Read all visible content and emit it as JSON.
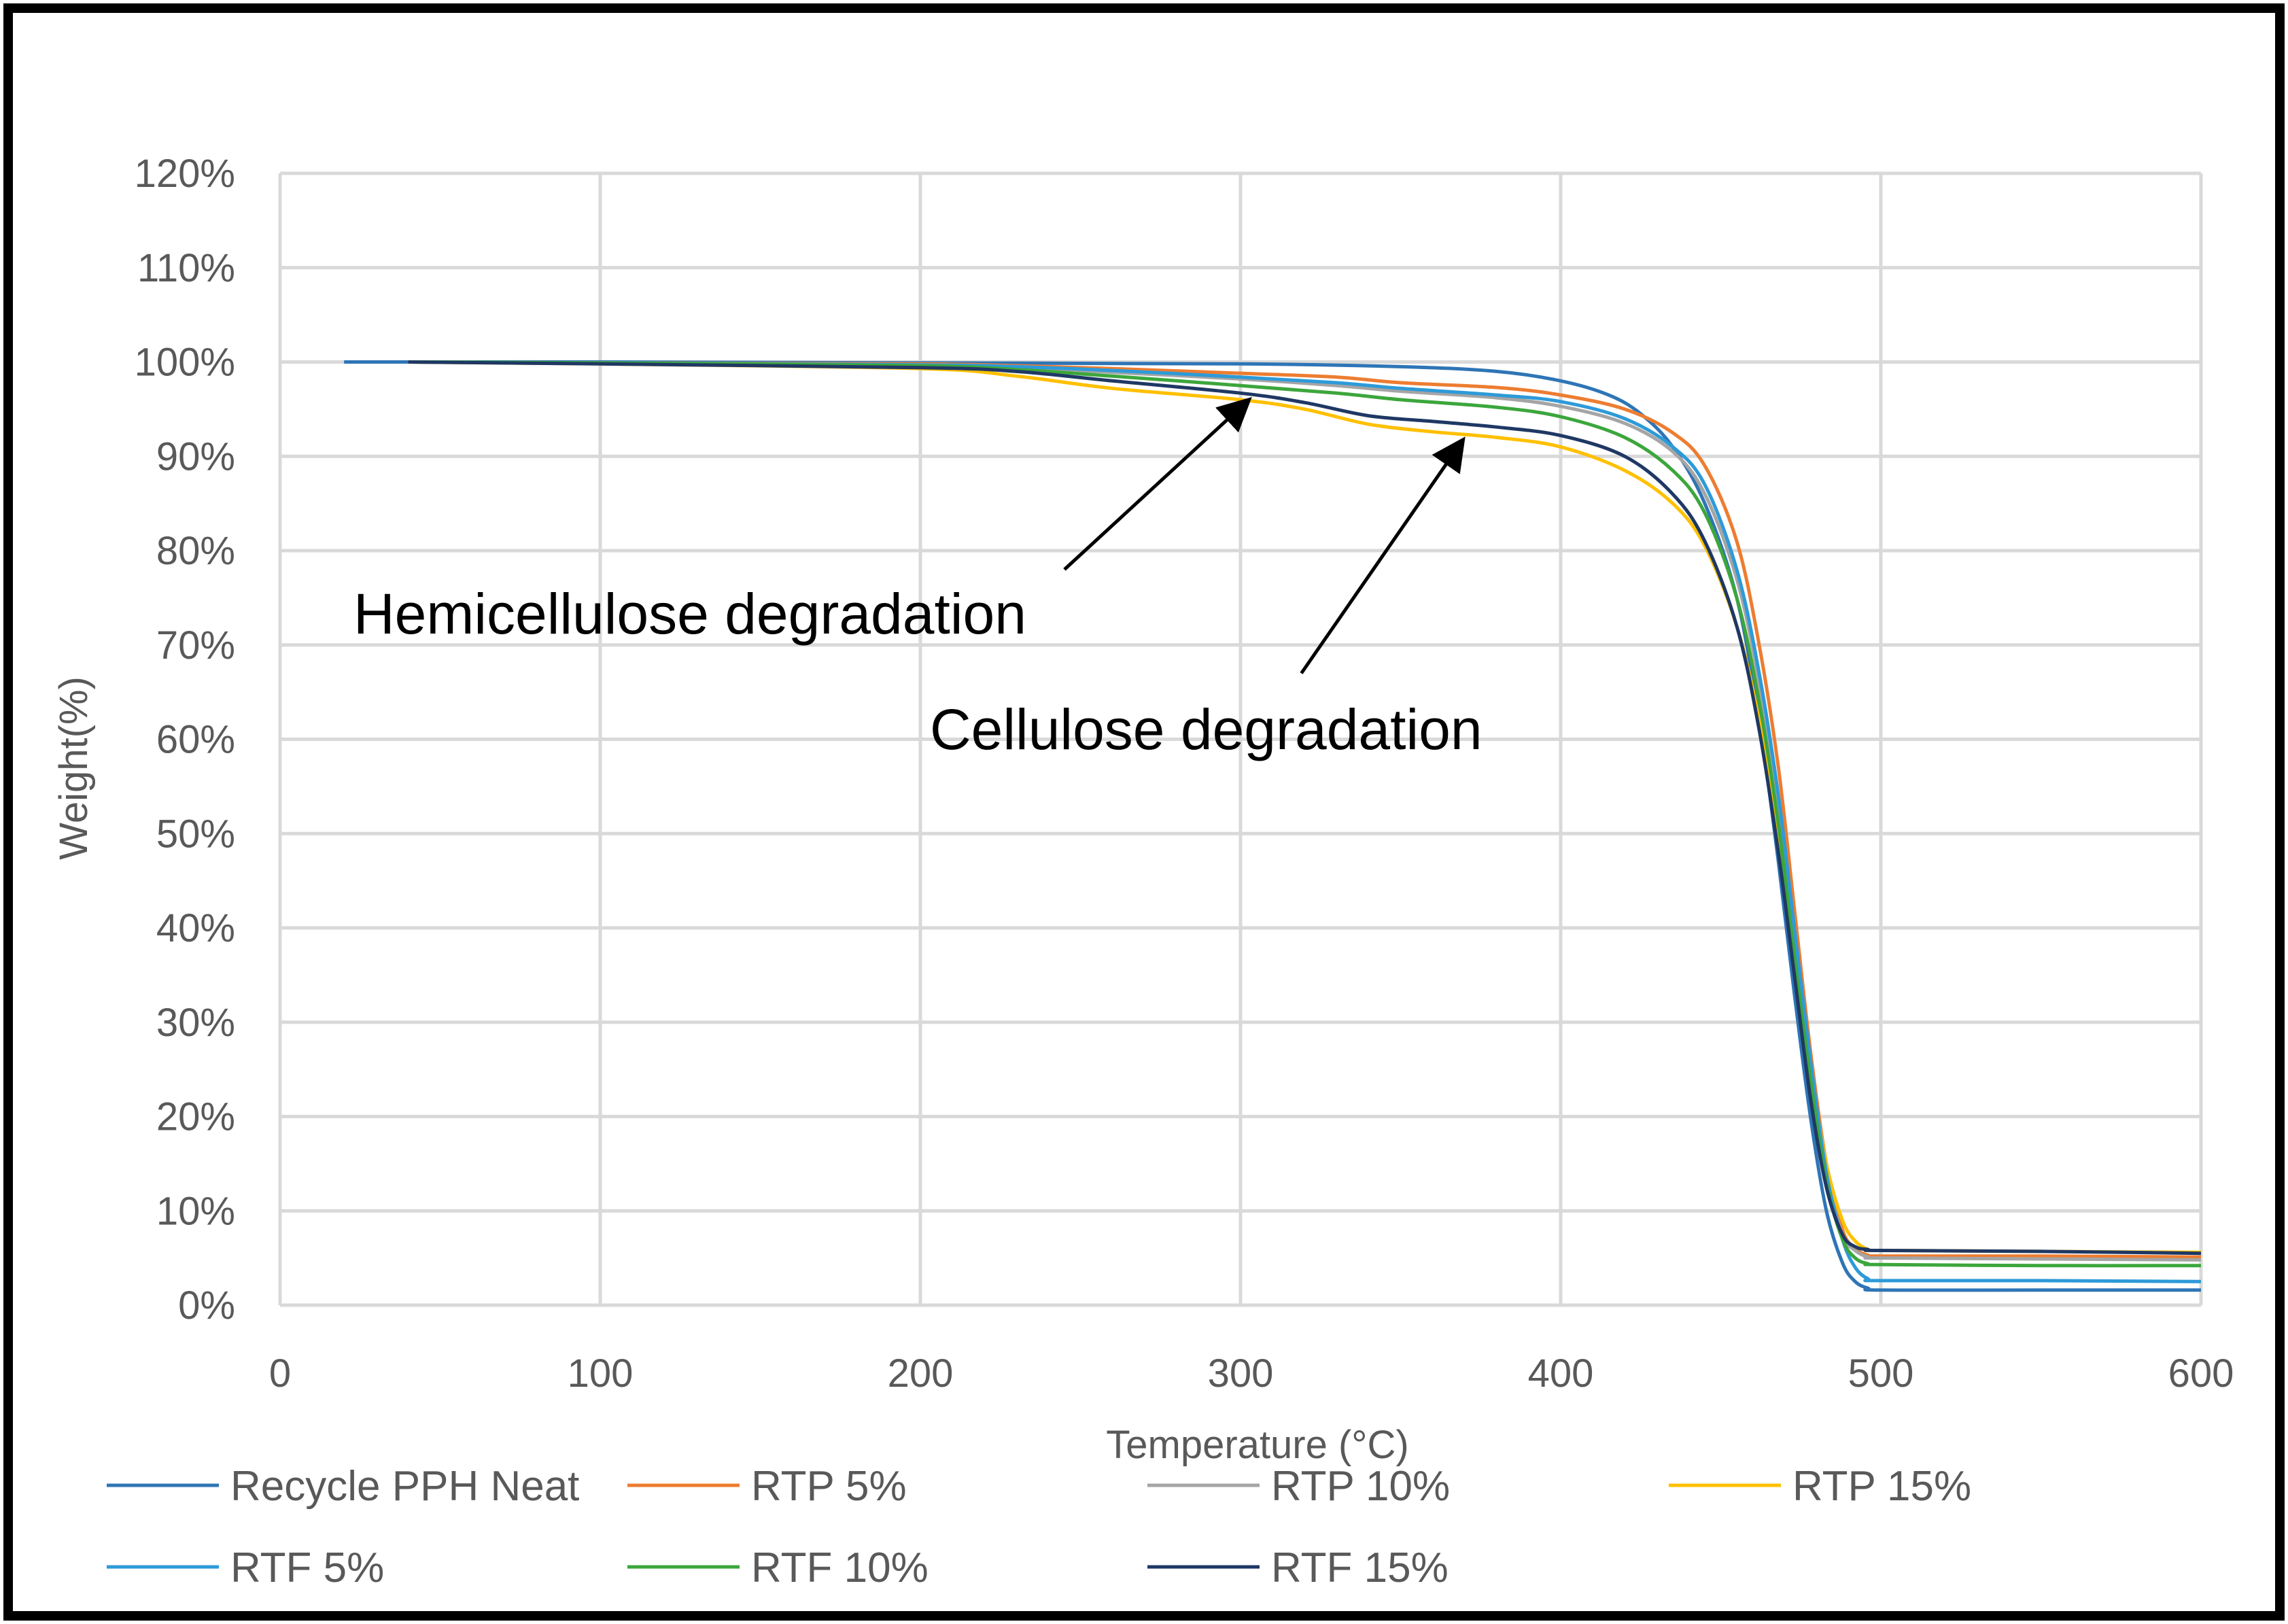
{
  "chart_data": {
    "type": "line",
    "title": "",
    "xlabel": "Temperature (°C)",
    "ylabel": "Weight(%)",
    "xlim": [
      0,
      600
    ],
    "ylim": [
      0,
      120
    ],
    "x_ticks": [
      0,
      100,
      200,
      300,
      400,
      500,
      600
    ],
    "x_tick_labels": [
      "0",
      "100",
      "200",
      "300",
      "400",
      "500",
      "600"
    ],
    "y_ticks": [
      0,
      10,
      20,
      30,
      40,
      50,
      60,
      70,
      80,
      90,
      100,
      110,
      120
    ],
    "y_tick_labels": [
      "0%",
      "10%",
      "20%",
      "30%",
      "40%",
      "50%",
      "60%",
      "70%",
      "80%",
      "90%",
      "100%",
      "110%",
      "120%"
    ],
    "grid": true,
    "legend_position": "bottom",
    "series": [
      {
        "name": "Recycle PPH Neat",
        "color": "#2E75B6",
        "x": [
          20,
          100,
          200,
          300,
          350,
          380,
          400,
          415,
          425,
          435,
          445,
          455,
          462,
          468,
          473,
          478,
          483,
          488,
          492,
          496,
          500,
          550,
          600
        ],
        "y": [
          100,
          100,
          99.9,
          99.8,
          99.5,
          99.0,
          98.0,
          96.5,
          94.5,
          91.0,
          85.0,
          75.0,
          62.0,
          47.0,
          33.0,
          20.0,
          10.0,
          4.5,
          2.5,
          1.8,
          1.6,
          1.6,
          1.6
        ]
      },
      {
        "name": "RTP 5%",
        "color": "#ED7D31",
        "x": [
          40,
          100,
          200,
          230,
          260,
          300,
          330,
          350,
          380,
          400,
          420,
          435,
          445,
          455,
          462,
          468,
          473,
          478,
          483,
          488,
          492,
          496,
          500,
          550,
          600
        ],
        "y": [
          100,
          99.9,
          99.8,
          99.6,
          99.3,
          98.8,
          98.4,
          97.8,
          97.3,
          96.5,
          95.0,
          92.5,
          89.0,
          81.0,
          70.0,
          57.0,
          42.0,
          27.0,
          15.0,
          8.0,
          6.0,
          5.3,
          5.2,
          5.2,
          5.1
        ]
      },
      {
        "name": "RTP 10%",
        "color": "#A5A5A5",
        "x": [
          40,
          100,
          200,
          230,
          260,
          300,
          330,
          350,
          380,
          400,
          420,
          435,
          445,
          455,
          462,
          468,
          473,
          478,
          483,
          488,
          492,
          496,
          500,
          550,
          600
        ],
        "y": [
          100,
          99.9,
          99.7,
          99.4,
          98.9,
          98.2,
          97.5,
          96.9,
          96.2,
          95.3,
          93.5,
          90.5,
          86.0,
          77.0,
          66.0,
          53.0,
          39.0,
          25.0,
          14.0,
          7.5,
          5.8,
          5.1,
          5.0,
          4.9,
          4.8
        ]
      },
      {
        "name": "RTP 15%",
        "color": "#FFC000",
        "x": [
          40,
          100,
          200,
          230,
          260,
          300,
          320,
          340,
          360,
          380,
          400,
          420,
          435,
          445,
          455,
          462,
          468,
          473,
          478,
          483,
          488,
          492,
          496,
          500,
          550,
          600
        ],
        "y": [
          100,
          99.8,
          99.3,
          98.5,
          97.2,
          96.0,
          95.0,
          93.4,
          92.6,
          92.0,
          91.0,
          88.5,
          85.0,
          80.5,
          72.0,
          62.0,
          50.0,
          37.0,
          25.0,
          15.0,
          9.0,
          6.8,
          5.9,
          5.8,
          5.7,
          5.6
        ]
      },
      {
        "name": "RTF 5%",
        "color": "#2E9AD8",
        "x": [
          40,
          100,
          200,
          230,
          260,
          300,
          330,
          350,
          380,
          400,
          420,
          435,
          445,
          455,
          462,
          468,
          473,
          478,
          483,
          488,
          492,
          496,
          500,
          550,
          600
        ],
        "y": [
          100,
          99.9,
          99.7,
          99.5,
          99.1,
          98.4,
          97.8,
          97.2,
          96.5,
          95.8,
          94.0,
          91.0,
          87.0,
          78.0,
          67.0,
          54.0,
          40.0,
          26.0,
          14.0,
          7.0,
          4.0,
          2.8,
          2.6,
          2.6,
          2.5
        ]
      },
      {
        "name": "RTF 10%",
        "color": "#3CA63C",
        "x": [
          40,
          100,
          200,
          230,
          260,
          300,
          330,
          350,
          380,
          400,
          420,
          435,
          445,
          455,
          462,
          468,
          473,
          478,
          483,
          488,
          492,
          496,
          500,
          550,
          600
        ],
        "y": [
          100,
          99.9,
          99.6,
          99.2,
          98.5,
          97.5,
          96.7,
          96.0,
          95.2,
          94.2,
          92.0,
          88.5,
          84.0,
          75.0,
          64.0,
          51.0,
          37.0,
          24.0,
          13.0,
          7.0,
          5.0,
          4.4,
          4.3,
          4.2,
          4.2
        ]
      },
      {
        "name": "RTF 15%",
        "color": "#1F3864",
        "x": [
          40,
          100,
          200,
          230,
          260,
          300,
          320,
          340,
          360,
          380,
          400,
          420,
          435,
          445,
          455,
          462,
          468,
          473,
          478,
          483,
          488,
          492,
          496,
          500,
          550,
          600
        ],
        "y": [
          100,
          99.8,
          99.4,
          99.0,
          98.0,
          96.7,
          95.7,
          94.3,
          93.7,
          93.1,
          92.2,
          90.0,
          86.0,
          81.0,
          72.0,
          61.0,
          48.0,
          35.0,
          22.0,
          12.5,
          7.5,
          6.2,
          5.9,
          5.8,
          5.7,
          5.5
        ]
      }
    ],
    "annotations": [
      {
        "text": "Hemicellulose degradation",
        "arrow_from": [
          245,
          78
        ],
        "arrow_to": [
          302,
          95.8
        ]
      },
      {
        "text": "Cellulose degradation",
        "arrow_from": [
          319,
          67
        ],
        "arrow_to": [
          369,
          91.5
        ]
      }
    ]
  }
}
